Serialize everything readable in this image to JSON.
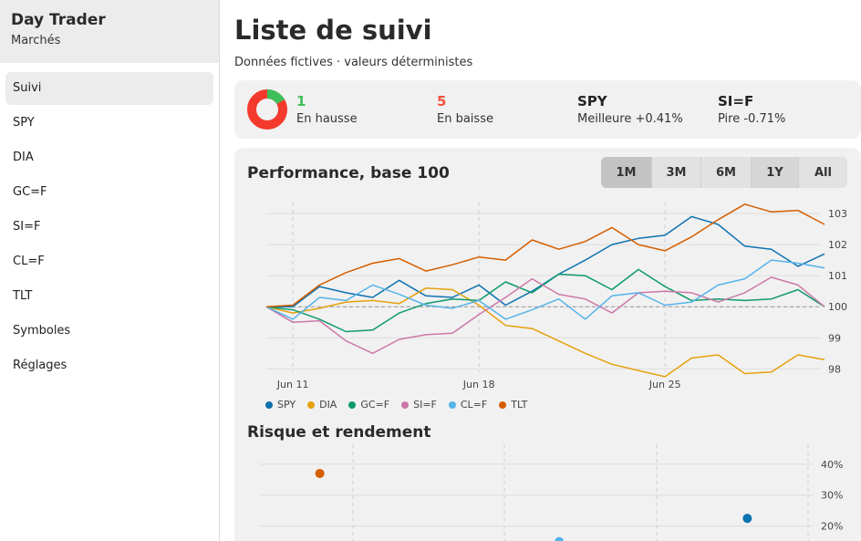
{
  "app": {
    "title": "Day Trader",
    "subtitle": "Marchés"
  },
  "nav": [
    {
      "label": "Suivi",
      "active": true
    },
    {
      "label": "SPY"
    },
    {
      "label": "DIA"
    },
    {
      "label": "GC=F"
    },
    {
      "label": "SI=F"
    },
    {
      "label": "CL=F"
    },
    {
      "label": "TLT"
    },
    {
      "label": "Symboles"
    },
    {
      "label": "Réglages"
    }
  ],
  "page": {
    "title": "Liste de suivi",
    "subtitle": "Données fictives · valeurs déterministes"
  },
  "summary": {
    "up": {
      "value": "1",
      "label": "En hausse",
      "color": "#3fbf5a"
    },
    "down": {
      "value": "5",
      "label": "En baisse",
      "color": "#f0523e"
    },
    "best": {
      "symbol": "SPY",
      "label": "Meilleure +0.41%"
    },
    "worst": {
      "symbol": "SI=F",
      "label": "Pire -0.71%"
    },
    "donut": {
      "up": 1,
      "down": 5,
      "up_color": "#3fbf5a",
      "down_color": "#f43a2c"
    }
  },
  "performance": {
    "title": "Performance, base 100",
    "ranges": [
      "1M",
      "3M",
      "6M",
      "1Y",
      "All"
    ],
    "active_range": "1M"
  },
  "chart_data": [
    {
      "type": "line",
      "title": "Performance, base 100",
      "x_labels": [
        "Jun 11",
        "Jun 18",
        "Jun 25"
      ],
      "x_label_index": [
        1,
        8,
        15
      ],
      "ylim": [
        97.6,
        103.5
      ],
      "y_ticks": [
        98,
        99,
        100,
        101,
        102,
        103
      ],
      "baseline": 100,
      "series": [
        {
          "name": "SPY",
          "color": "#0d72b0",
          "values": [
            100,
            100.0,
            100.65,
            100.45,
            100.3,
            100.85,
            100.35,
            100.3,
            100.7,
            100.05,
            100.5,
            101.05,
            101.5,
            102.0,
            102.2,
            102.3,
            102.9,
            102.65,
            101.95,
            101.85,
            101.3,
            101.7
          ]
        },
        {
          "name": "DIA",
          "color": "#e6a10e",
          "values": [
            100,
            99.8,
            99.95,
            100.15,
            100.2,
            100.1,
            100.6,
            100.55,
            100.05,
            99.4,
            99.3,
            98.9,
            98.5,
            98.15,
            97.95,
            97.75,
            98.35,
            98.45,
            97.85,
            97.9,
            98.45,
            98.3
          ]
        },
        {
          "name": "GC=F",
          "color": "#0e9a6c",
          "values": [
            100,
            99.9,
            99.6,
            99.2,
            99.25,
            99.8,
            100.1,
            100.25,
            100.2,
            100.8,
            100.45,
            101.05,
            101.0,
            100.55,
            101.2,
            100.65,
            100.2,
            100.25,
            100.2,
            100.25,
            100.55,
            100.0
          ]
        },
        {
          "name": "SI=F",
          "color": "#cc79a7",
          "values": [
            100,
            99.5,
            99.55,
            98.9,
            98.5,
            98.95,
            99.1,
            99.15,
            99.75,
            100.3,
            100.9,
            100.4,
            100.25,
            99.8,
            100.45,
            100.5,
            100.45,
            100.15,
            100.45,
            100.95,
            100.7,
            100.0
          ]
        },
        {
          "name": "CL=F",
          "color": "#56b4e9",
          "values": [
            100,
            99.6,
            100.3,
            100.2,
            100.7,
            100.4,
            100.05,
            99.95,
            100.2,
            99.6,
            99.9,
            100.25,
            99.6,
            100.35,
            100.45,
            100.05,
            100.15,
            100.7,
            100.9,
            101.5,
            101.4,
            101.25
          ]
        },
        {
          "name": "TLT",
          "color": "#d55e00",
          "values": [
            100,
            100.05,
            100.7,
            101.1,
            101.4,
            101.55,
            101.15,
            101.35,
            101.6,
            101.5,
            102.15,
            101.85,
            102.1,
            102.55,
            102.0,
            101.8,
            102.25,
            102.8,
            103.3,
            103.05,
            103.1,
            102.65
          ]
        }
      ]
    },
    {
      "type": "scatter",
      "title": "Risque et rendement",
      "ylim": [
        14,
        42
      ],
      "y_ticks": [
        "20%",
        "30%",
        "40%"
      ],
      "y_tick_values": [
        20,
        30,
        40
      ],
      "xlim": [
        0,
        32
      ],
      "points": [
        {
          "name": "TLT",
          "color": "#d55e00",
          "x": 3.5,
          "y": 37
        },
        {
          "name": "CL=F",
          "color": "#56b4e9",
          "x": 17.5,
          "y": 15
        },
        {
          "name": "SPY",
          "color": "#0d72b0",
          "x": 28.5,
          "y": 22.5
        }
      ]
    }
  ],
  "risk": {
    "title": "Risque et rendement"
  }
}
